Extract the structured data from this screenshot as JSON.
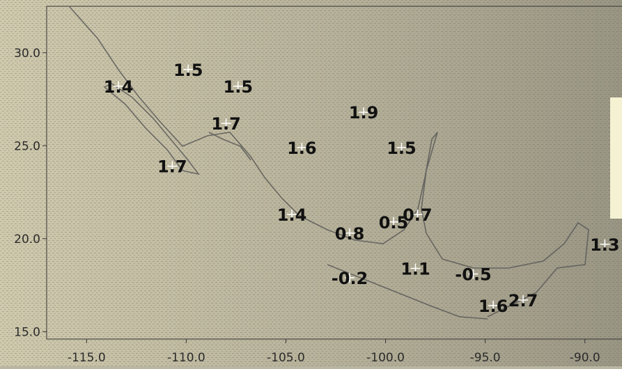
{
  "map": {
    "x_axis": {
      "range": [
        -117,
        -88
      ],
      "ticks": [
        {
          "value": -115,
          "label": "-115.0"
        },
        {
          "value": -110,
          "label": "-110.0"
        },
        {
          "value": -105,
          "label": "-105.0"
        },
        {
          "value": -100,
          "label": "-100.0"
        },
        {
          "value": -95,
          "label": "-95.0"
        },
        {
          "value": -90,
          "label": "-90.0"
        }
      ]
    },
    "y_axis": {
      "range": [
        14.6,
        32.5
      ],
      "ticks": [
        {
          "value": 30,
          "label": "30.0"
        },
        {
          "value": 25,
          "label": "25.0"
        },
        {
          "value": 20,
          "label": "20.0"
        },
        {
          "value": 15,
          "label": "15.0"
        }
      ]
    },
    "stations": [
      {
        "lon": -113.4,
        "lat": 28.2,
        "label": "1.4"
      },
      {
        "lon": -109.9,
        "lat": 29.1,
        "label": "1.5"
      },
      {
        "lon": -107.4,
        "lat": 28.2,
        "label": "1.5"
      },
      {
        "lon": -108.0,
        "lat": 26.2,
        "label": "1.7"
      },
      {
        "lon": -110.7,
        "lat": 23.9,
        "label": "1.7"
      },
      {
        "lon": -104.2,
        "lat": 24.9,
        "label": "1.6"
      },
      {
        "lon": -101.1,
        "lat": 26.8,
        "label": "1.9"
      },
      {
        "lon": -99.2,
        "lat": 24.9,
        "label": "1.5"
      },
      {
        "lon": -104.7,
        "lat": 21.3,
        "label": "1.4"
      },
      {
        "lon": -101.8,
        "lat": 20.3,
        "label": "0.8"
      },
      {
        "lon": -98.4,
        "lat": 21.3,
        "label": "0.7"
      },
      {
        "lon": -99.6,
        "lat": 20.9,
        "label": "0.5"
      },
      {
        "lon": -101.8,
        "lat": 17.9,
        "label": "-0.2"
      },
      {
        "lon": -98.5,
        "lat": 18.4,
        "label": "1.1"
      },
      {
        "lon": -95.6,
        "lat": 18.1,
        "label": "-0.5"
      },
      {
        "lon": -94.6,
        "lat": 16.4,
        "label": "1.6"
      },
      {
        "lon": -93.1,
        "lat": 16.7,
        "label": "2.7"
      },
      {
        "lon": -89.0,
        "lat": 19.7,
        "label": "1.3"
      }
    ],
    "colors": {
      "background": "#b9b6a2",
      "land_west": "#c9c3a8",
      "land_east": "#a09c89",
      "coastline": "#555555",
      "label_text": "#111111",
      "marker": "#ffffff",
      "legend_panel": "#f4f2d2"
    }
  }
}
